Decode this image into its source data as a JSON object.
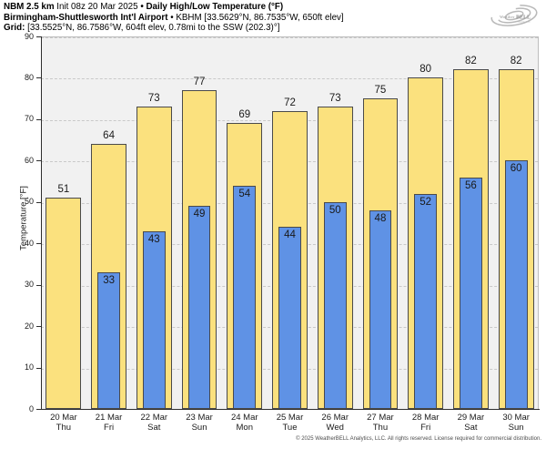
{
  "header": {
    "lines": [
      {
        "segments": [
          {
            "t": "NBM 2.5 km ",
            "b": 1
          },
          {
            "t": "Init 08z 20 Mar 2025 ",
            "b": 0
          },
          {
            "t": "• Daily High/Low Temperature (°F)",
            "b": 1
          }
        ]
      },
      {
        "segments": [
          {
            "t": "Birmingham-Shuttlesworth Int'l Airport",
            "b": 1
          },
          {
            "t": " • KBHM [33.5629°N, 86.7535°W, 650ft elev]",
            "b": 0
          }
        ]
      },
      {
        "segments": [
          {
            "t": "Grid:",
            "b": 1
          },
          {
            "t": " [33.5525°N, 86.7586°W, 604ft elev, 0.78mi to the SSW (202.3)°]",
            "b": 0
          }
        ]
      }
    ]
  },
  "logo": {
    "brand_prefix": "Weather",
    "brand_suffix": "BELL",
    "subtext": "Analytics LLC"
  },
  "chart_data": {
    "type": "bar",
    "title": "Daily High/Low Temperature (°F)",
    "categories": [
      {
        "date": "20 Mar",
        "day": "Thu"
      },
      {
        "date": "21 Mar",
        "day": "Fri"
      },
      {
        "date": "22 Mar",
        "day": "Sat"
      },
      {
        "date": "23 Mar",
        "day": "Sun"
      },
      {
        "date": "24 Mar",
        "day": "Mon"
      },
      {
        "date": "25 Mar",
        "day": "Tue"
      },
      {
        "date": "26 Mar",
        "day": "Wed"
      },
      {
        "date": "27 Mar",
        "day": "Thu"
      },
      {
        "date": "28 Mar",
        "day": "Fri"
      },
      {
        "date": "29 Mar",
        "day": "Sat"
      },
      {
        "date": "30 Mar",
        "day": "Sun"
      }
    ],
    "series": [
      {
        "name": "Daily High",
        "color": "#FBE17E",
        "values": [
          51,
          64,
          73,
          77,
          69,
          72,
          73,
          75,
          80,
          82,
          82
        ]
      },
      {
        "name": "Daily Low",
        "color": "#5F92E5",
        "values": [
          null,
          33,
          43,
          49,
          54,
          44,
          50,
          48,
          52,
          56,
          60
        ]
      }
    ],
    "ylabel": "Temperature [°F]",
    "ylim": [
      0,
      90
    ],
    "yticks": [
      0,
      10,
      20,
      30,
      40,
      50,
      60,
      70,
      80,
      90
    ],
    "grid": "horizontal-dashed",
    "legend": "none",
    "colors": {
      "high_bar": "#FBE17E",
      "low_bar": "#5F92E5",
      "bar_border": "#4A4A4A",
      "plot_bg": "#F1F1F1",
      "gridline": "#C9C9C9",
      "axis": "#2E2E2E"
    }
  },
  "footer": {
    "copyright": "© 2025 WeatherBELL Analytics, LLC. All rights reserved. License required for commercial distribution."
  }
}
